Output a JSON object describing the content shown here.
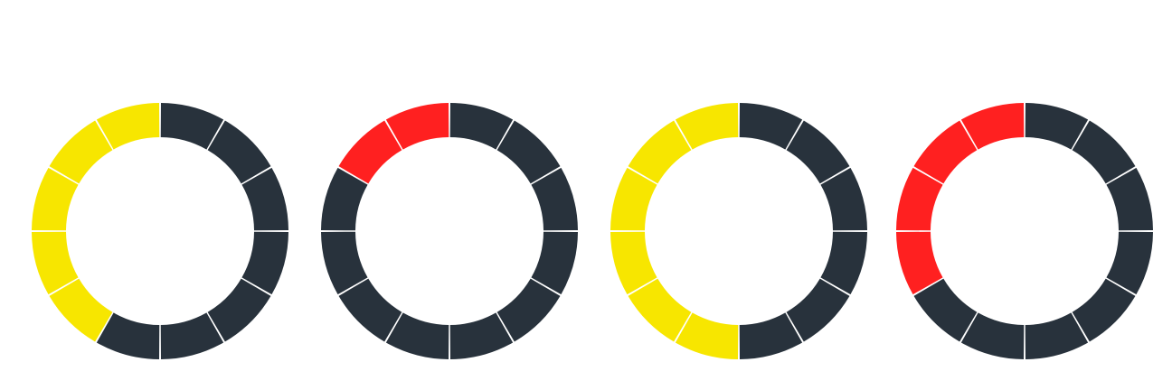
{
  "colors": {
    "background": "#ffffff",
    "inactive": "#28323c",
    "yellow": "#f7e600",
    "red": "#ff2020",
    "separator": "#ffffff"
  },
  "ring_segments_total": 12,
  "rings": [
    {
      "active_segments": 5,
      "active_color": "yellow"
    },
    {
      "active_segments": 2,
      "active_color": "red"
    },
    {
      "active_segments": 6,
      "active_color": "yellow"
    },
    {
      "active_segments": 4,
      "active_color": "red"
    }
  ]
}
